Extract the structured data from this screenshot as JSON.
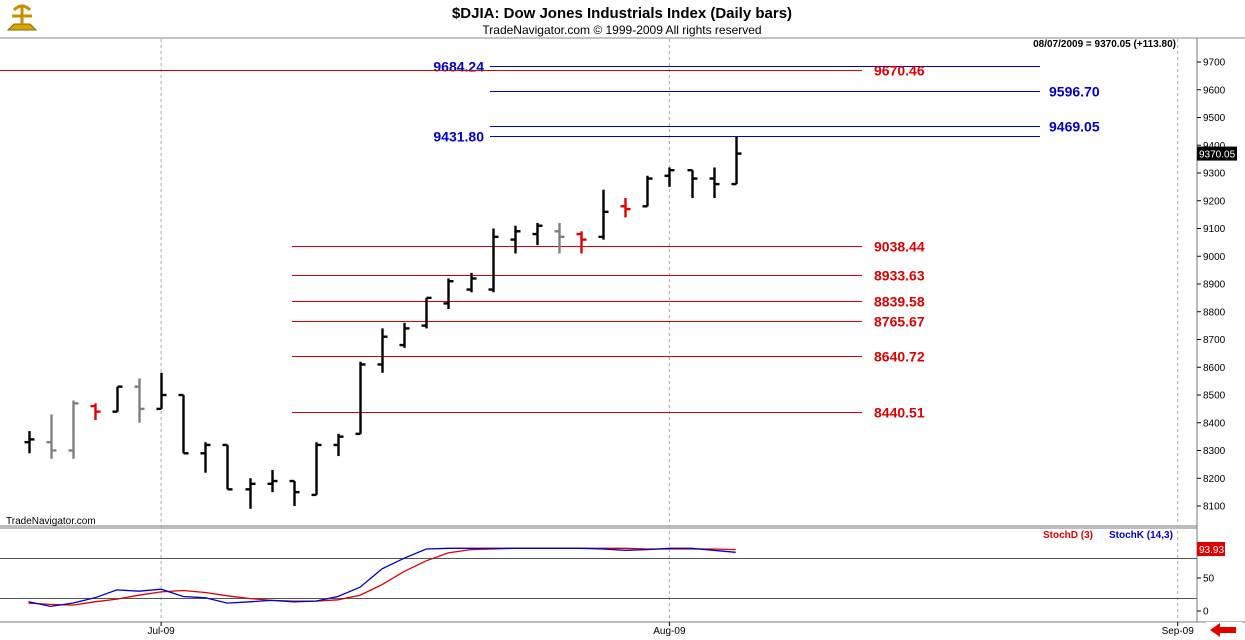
{
  "header": {
    "title": "$DJIA:  Dow Jones Industrials Index  (Daily bars)",
    "copyright": "TradeNavigator.com © 1999-2009 All rights reserved",
    "watermark": "TradeNavigator.com",
    "last_bar_stamp": "08/07/2009 = 9370.05 (+113.80)"
  },
  "colors": {
    "up_bar": "#000000",
    "neutral_bar": "#808080",
    "down_bar": "#e00000",
    "blue_level": "#0000c8",
    "red_level": "#dd0000",
    "stoch_d": "#dd0000",
    "stoch_k": "#0000c8",
    "grid": "#a8a8a8"
  },
  "chart_data": [
    {
      "type": "bar",
      "style": "ohlc",
      "ylim": [
        8050,
        9750
      ],
      "y_ticks": [
        8100,
        8200,
        8300,
        8400,
        8500,
        8600,
        8700,
        8800,
        8900,
        9000,
        9100,
        9200,
        9300,
        9400,
        9500,
        9600,
        9700
      ],
      "x_ticks": [
        {
          "label": "Jul-09",
          "index": 6
        },
        {
          "label": "Aug-09",
          "index": 29
        },
        {
          "label": "Sep-09",
          "index": 52
        }
      ],
      "last_price_label": "9370.05",
      "bars": [
        {
          "o": 8330,
          "h": 8370,
          "l": 8290,
          "c": 8340,
          "color": "black"
        },
        {
          "o": 8330,
          "h": 8430,
          "l": 8270,
          "c": 8300,
          "color": "gray"
        },
        {
          "o": 8300,
          "h": 8480,
          "l": 8270,
          "c": 8470,
          "color": "gray"
        },
        {
          "o": 8460,
          "h": 8470,
          "l": 8410,
          "c": 8440,
          "color": "red"
        },
        {
          "o": 8440,
          "h": 8530,
          "l": 8440,
          "c": 8530,
          "color": "black"
        },
        {
          "o": 8530,
          "h": 8560,
          "l": 8400,
          "c": 8450,
          "color": "gray"
        },
        {
          "o": 8450,
          "h": 8580,
          "l": 8450,
          "c": 8500,
          "color": "black"
        },
        {
          "o": 8500,
          "h": 8500,
          "l": 8290,
          "c": 8290,
          "color": "black"
        },
        {
          "o": 8290,
          "h": 8330,
          "l": 8220,
          "c": 8320,
          "color": "black"
        },
        {
          "o": 8320,
          "h": 8320,
          "l": 8160,
          "c": 8160,
          "color": "black"
        },
        {
          "o": 8160,
          "h": 8200,
          "l": 8090,
          "c": 8180,
          "color": "black"
        },
        {
          "o": 8180,
          "h": 8230,
          "l": 8150,
          "c": 8190,
          "color": "black"
        },
        {
          "o": 8190,
          "h": 8190,
          "l": 8100,
          "c": 8150,
          "color": "black"
        },
        {
          "o": 8140,
          "h": 8330,
          "l": 8140,
          "c": 8320,
          "color": "black"
        },
        {
          "o": 8320,
          "h": 8360,
          "l": 8280,
          "c": 8350,
          "color": "black"
        },
        {
          "o": 8360,
          "h": 8620,
          "l": 8360,
          "c": 8610,
          "color": "black"
        },
        {
          "o": 8610,
          "h": 8740,
          "l": 8580,
          "c": 8710,
          "color": "black"
        },
        {
          "o": 8680,
          "h": 8760,
          "l": 8670,
          "c": 8740,
          "color": "black"
        },
        {
          "o": 8750,
          "h": 8850,
          "l": 8740,
          "c": 8850,
          "color": "black"
        },
        {
          "o": 8830,
          "h": 8920,
          "l": 8810,
          "c": 8910,
          "color": "black"
        },
        {
          "o": 8880,
          "h": 8940,
          "l": 8870,
          "c": 8920,
          "color": "black"
        },
        {
          "o": 8880,
          "h": 9100,
          "l": 8870,
          "c": 9070,
          "color": "black"
        },
        {
          "o": 9060,
          "h": 9110,
          "l": 9010,
          "c": 9090,
          "color": "black"
        },
        {
          "o": 9080,
          "h": 9120,
          "l": 9040,
          "c": 9110,
          "color": "black"
        },
        {
          "o": 9090,
          "h": 9120,
          "l": 9010,
          "c": 9070,
          "color": "gray"
        },
        {
          "o": 9080,
          "h": 9090,
          "l": 9010,
          "c": 9060,
          "color": "red"
        },
        {
          "o": 9070,
          "h": 9240,
          "l": 9060,
          "c": 9160,
          "color": "black"
        },
        {
          "o": 9180,
          "h": 9210,
          "l": 9140,
          "c": 9170,
          "color": "red"
        },
        {
          "o": 9180,
          "h": 9290,
          "l": 9180,
          "c": 9280,
          "color": "black"
        },
        {
          "o": 9290,
          "h": 9320,
          "l": 9250,
          "c": 9310,
          "color": "black"
        },
        {
          "o": 9310,
          "h": 9310,
          "l": 9210,
          "c": 9280,
          "color": "black"
        },
        {
          "o": 9280,
          "h": 9320,
          "l": 9210,
          "c": 9260,
          "color": "black"
        },
        {
          "o": 9260,
          "h": 9430,
          "l": 9260,
          "c": 9370,
          "color": "black"
        }
      ],
      "levels": [
        {
          "value": 9684.24,
          "label": "9684.24",
          "color": "blue",
          "start_index": 20,
          "label_side": "left"
        },
        {
          "value": 9596.7,
          "label": "9596.70",
          "color": "blue",
          "start_index": 20,
          "label_side": "right"
        },
        {
          "value": 9469.05,
          "label": "9469.05",
          "color": "blue",
          "start_index": 20,
          "label_side": "right"
        },
        {
          "value": 9431.8,
          "label": "9431.80",
          "color": "blue",
          "start_index": 20,
          "label_side": "left"
        },
        {
          "value": 9670.46,
          "label": "9670.46",
          "color": "red",
          "start_index": -2,
          "label_side": "mid"
        },
        {
          "value": 9038.44,
          "label": "9038.44",
          "color": "red",
          "start_index": 12,
          "label_side": "mid"
        },
        {
          "value": 8933.63,
          "label": "8933.63",
          "color": "red",
          "start_index": 12,
          "label_side": "mid"
        },
        {
          "value": 8839.58,
          "label": "8839.58",
          "color": "red",
          "start_index": 12,
          "label_side": "mid"
        },
        {
          "value": 8765.67,
          "label": "8765.67",
          "color": "red",
          "start_index": 12,
          "label_side": "mid"
        },
        {
          "value": 8640.72,
          "label": "8640.72",
          "color": "red",
          "start_index": 12,
          "label_side": "mid"
        },
        {
          "value": 8440.51,
          "label": "8440.51",
          "color": "red",
          "start_index": 12,
          "label_side": "mid"
        }
      ]
    },
    {
      "type": "line",
      "ylim": [
        -5,
        110
      ],
      "y_ticks": [
        0,
        50
      ],
      "reference_lines": [
        20,
        80
      ],
      "last_value_label": "93.93",
      "series": [
        {
          "name": "StochD (3)",
          "color": "red",
          "values": [
            12,
            10,
            9,
            14,
            18,
            24,
            29,
            31,
            28,
            23,
            19,
            16,
            15,
            15,
            17,
            24,
            40,
            60,
            76,
            88,
            93,
            94,
            95,
            95,
            95,
            95,
            95,
            95,
            94,
            94,
            94,
            94,
            93
          ]
        },
        {
          "name": "StochK (14,3)",
          "color": "blue",
          "values": [
            14,
            7,
            12,
            20,
            32,
            30,
            33,
            22,
            20,
            12,
            14,
            16,
            14,
            15,
            22,
            36,
            64,
            80,
            94,
            95,
            95,
            95,
            95,
            95,
            95,
            95,
            94,
            92,
            93,
            95,
            95,
            92,
            89
          ]
        }
      ]
    }
  ]
}
